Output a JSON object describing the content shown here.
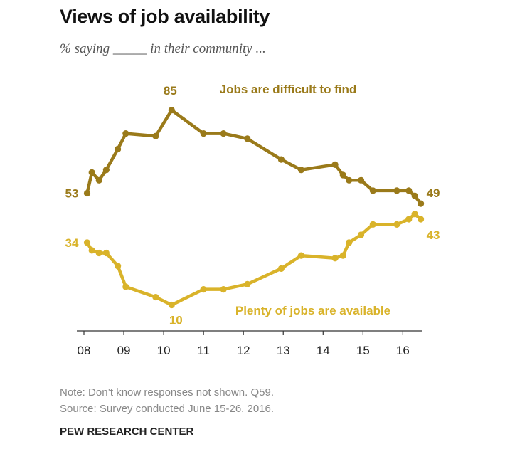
{
  "title": "Views of job availability",
  "subtitle": "% saying _____ in their community ...",
  "note": "Note: Don’t know responses not shown. Q59.",
  "source": "Source: Survey conducted June 15-26, 2016.",
  "org": "PEW RESEARCH CENTER",
  "colors": {
    "difficult": "#9a7a1a",
    "plenty": "#d9b32a",
    "axis": "#333333"
  },
  "chart_data": {
    "type": "line",
    "xlabel": "",
    "ylabel": "",
    "xlim": [
      2008.0,
      2016.6
    ],
    "ylim": [
      0,
      100
    ],
    "xticks": [
      {
        "value": 2008,
        "label": "08"
      },
      {
        "value": 2009,
        "label": "09"
      },
      {
        "value": 2010,
        "label": "10"
      },
      {
        "value": 2011,
        "label": "11"
      },
      {
        "value": 2012,
        "label": "12"
      },
      {
        "value": 2013,
        "label": "13"
      },
      {
        "value": 2014,
        "label": "14"
      },
      {
        "value": 2015,
        "label": "15"
      },
      {
        "value": 2016,
        "label": "16"
      }
    ],
    "series": [
      {
        "name": "Jobs are difficult to find",
        "color_key": "difficult",
        "x": [
          2008.08,
          2008.2,
          2008.38,
          2008.56,
          2008.85,
          2009.05,
          2009.8,
          2010.2,
          2011.0,
          2011.5,
          2012.1,
          2012.95,
          2013.45,
          2014.3,
          2014.5,
          2014.65,
          2014.95,
          2015.25,
          2015.85,
          2016.15,
          2016.3,
          2016.45
        ],
        "y": [
          53,
          61,
          58,
          62,
          70,
          76,
          75,
          85,
          76,
          76,
          74,
          66,
          62,
          64,
          60,
          58,
          58,
          54,
          54,
          54,
          52,
          49
        ],
        "start_label": "53",
        "end_label": "49",
        "peak_label": "85",
        "peak_index": 7
      },
      {
        "name": "Plenty of jobs are available",
        "color_key": "plenty",
        "x": [
          2008.08,
          2008.2,
          2008.38,
          2008.56,
          2008.85,
          2009.05,
          2009.8,
          2010.2,
          2011.0,
          2011.5,
          2012.1,
          2012.95,
          2013.45,
          2014.3,
          2014.5,
          2014.65,
          2014.95,
          2015.25,
          2015.85,
          2016.15,
          2016.3,
          2016.45
        ],
        "y": [
          34,
          31,
          30,
          30,
          25,
          17,
          13,
          10,
          16,
          16,
          18,
          24,
          29,
          28,
          29,
          34,
          37,
          41,
          41,
          43,
          45,
          43
        ],
        "start_label": "34",
        "end_label": "43",
        "trough_label": "10",
        "trough_index": 7
      }
    ]
  }
}
